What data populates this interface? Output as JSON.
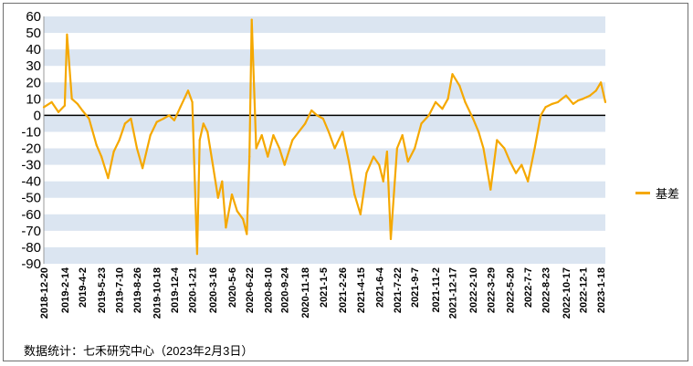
{
  "chart_data": {
    "type": "line",
    "title": "",
    "xlabel": "",
    "ylabel": "",
    "ylim": [
      -90,
      60
    ],
    "yticks": [
      -90,
      -80,
      -70,
      -60,
      -50,
      -40,
      -30,
      -20,
      -10,
      0,
      10,
      20,
      30,
      40,
      50,
      60
    ],
    "xtick_labels": [
      "2018-12-20",
      "2019-2-14",
      "2019-4-2",
      "2019-5-23",
      "2019-7-10",
      "2019-8-26",
      "2019-10-18",
      "2019-12-4",
      "2020-1-21",
      "2020-3-16",
      "2020-5-6",
      "2020-6-22",
      "2020-8-10",
      "2020-9-24",
      "2020-11-18",
      "2021-1-5",
      "2021-2-26",
      "2021-4-15",
      "2021-6-4",
      "2021-7-22",
      "2021-9-7",
      "2021-11-2",
      "2021-12-17",
      "2022-2-10",
      "2022-3-29",
      "2022-5-20",
      "2022-7-7",
      "2022-8-23",
      "2022-10-17",
      "2022-12-1",
      "2023-1-18"
    ],
    "x": [
      "2018-12-20",
      "2019-1-10",
      "2019-1-28",
      "2019-2-14",
      "2019-2-20",
      "2019-3-5",
      "2019-3-20",
      "2019-4-2",
      "2019-4-20",
      "2019-5-10",
      "2019-5-23",
      "2019-6-10",
      "2019-6-25",
      "2019-7-10",
      "2019-7-25",
      "2019-8-10",
      "2019-8-26",
      "2019-9-10",
      "2019-10-1",
      "2019-10-18",
      "2019-11-5",
      "2019-11-20",
      "2019-12-4",
      "2019-12-20",
      "2020-1-10",
      "2020-1-21",
      "2020-2-3",
      "2020-2-10",
      "2020-2-20",
      "2020-3-2",
      "2020-3-16",
      "2020-3-30",
      "2020-4-10",
      "2020-4-20",
      "2020-5-6",
      "2020-5-20",
      "2020-6-5",
      "2020-6-15",
      "2020-6-22",
      "2020-6-28",
      "2020-7-10",
      "2020-7-25",
      "2020-8-10",
      "2020-8-25",
      "2020-9-10",
      "2020-9-24",
      "2020-10-15",
      "2020-11-1",
      "2020-11-18",
      "2020-12-5",
      "2020-12-20",
      "2021-1-5",
      "2021-1-20",
      "2021-2-5",
      "2021-2-26",
      "2021-3-15",
      "2021-3-30",
      "2021-4-15",
      "2021-5-1",
      "2021-5-20",
      "2021-6-4",
      "2021-6-15",
      "2021-6-25",
      "2021-7-5",
      "2021-7-22",
      "2021-8-5",
      "2021-8-20",
      "2021-9-7",
      "2021-9-25",
      "2021-10-15",
      "2021-11-2",
      "2021-11-20",
      "2021-12-5",
      "2021-12-17",
      "2022-1-5",
      "2022-1-20",
      "2022-2-10",
      "2022-2-25",
      "2022-3-10",
      "2022-3-29",
      "2022-4-15",
      "2022-5-5",
      "2022-5-20",
      "2022-6-5",
      "2022-6-20",
      "2022-7-7",
      "2022-7-25",
      "2022-8-10",
      "2022-8-23",
      "2022-9-10",
      "2022-9-25",
      "2022-10-17",
      "2022-11-5",
      "2022-11-18",
      "2022-12-1",
      "2022-12-20",
      "2023-1-5",
      "2023-1-18",
      "2023-1-30"
    ],
    "series": [
      {
        "name": "基差",
        "color": "#f5a800",
        "values": [
          5,
          8,
          2,
          6,
          49,
          10,
          7,
          3,
          -2,
          -18,
          -25,
          -38,
          -22,
          -15,
          -5,
          -2,
          -20,
          -32,
          -12,
          -4,
          -2,
          0,
          -3,
          5,
          15,
          8,
          -84,
          -15,
          -5,
          -10,
          -30,
          -50,
          -40,
          -68,
          -48,
          -58,
          -63,
          -72,
          -25,
          58,
          -20,
          -12,
          -25,
          -12,
          -20,
          -30,
          -15,
          -10,
          -5,
          3,
          0,
          -2,
          -10,
          -20,
          -10,
          -28,
          -48,
          -60,
          -35,
          -25,
          -30,
          -40,
          -22,
          -75,
          -20,
          -12,
          -28,
          -20,
          -5,
          0,
          8,
          4,
          10,
          25,
          18,
          8,
          -2,
          -10,
          -20,
          -45,
          -15,
          -20,
          -28,
          -35,
          -30,
          -40,
          -20,
          0,
          5,
          7,
          8,
          12,
          7,
          9,
          10,
          12,
          15,
          20,
          8
        ]
      }
    ],
    "legend_position": "right",
    "grid": "alternating-horizontal-bands",
    "band_color": "#dbe5f1",
    "zero_line": true
  },
  "source_note": "数据统计：七禾研究中心（2023年2月3日）"
}
